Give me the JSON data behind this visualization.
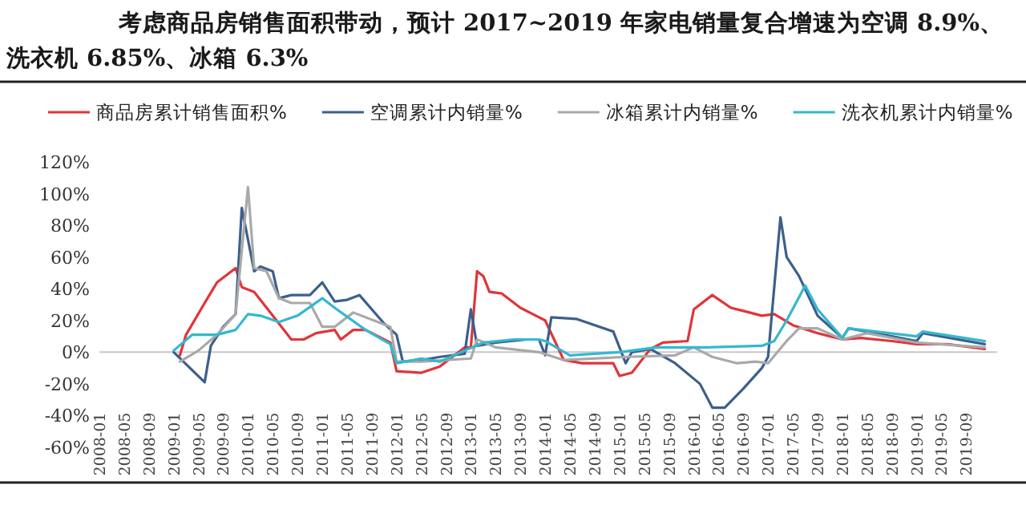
{
  "chart_data": {
    "type": "line",
    "title": "考虑商品房销售面积带动，预计 2017~2019 年家电销量复合增速为空调 8.9%、洗衣机 6.85%、冰箱 6.3%",
    "legend": "top",
    "marker": "none",
    "line_style": "solid",
    "xlim": [
      "2008-01",
      "2020-02"
    ],
    "ylim": [
      -60,
      120
    ],
    "xticks": [
      "2008-01",
      "2008-05",
      "2008-09",
      "2009-01",
      "2009-05",
      "2009-09",
      "2010-01",
      "2010-05",
      "2010-09",
      "2011-01",
      "2011-05",
      "2011-09",
      "2012-01",
      "2012-05",
      "2012-09",
      "2013-01",
      "2013-05",
      "2013-09",
      "2014-01",
      "2014-05",
      "2014-09",
      "2015-01",
      "2015-05",
      "2015-09",
      "2016-01",
      "2016-05",
      "2016-09",
      "2017-01",
      "2017-05",
      "2017-09",
      "2018-01",
      "2018-05",
      "2018-09",
      "2019-01",
      "2019-05",
      "2019-09"
    ],
    "yticks": [
      {
        "value": -60,
        "label": "-60%"
      },
      {
        "value": -40,
        "label": "-40%"
      },
      {
        "value": -20,
        "label": "-20%"
      },
      {
        "value": 0,
        "label": "0%"
      },
      {
        "value": 20,
        "label": "20%"
      },
      {
        "value": 40,
        "label": "40%"
      },
      {
        "value": 60,
        "label": "60%"
      },
      {
        "value": 80,
        "label": "80%"
      },
      {
        "value": 100,
        "label": "100%"
      },
      {
        "value": 120,
        "label": "120%"
      }
    ],
    "series": [
      {
        "name": "商品房累计销售面积%",
        "color": "#e0353a",
        "x": [
          "2009-02",
          "2009-03",
          "2009-06",
          "2009-08",
          "2009-11",
          "2009-12",
          "2010-02",
          "2010-05",
          "2010-08",
          "2010-10",
          "2010-12",
          "2011-03",
          "2011-04",
          "2011-06",
          "2011-08",
          "2011-12",
          "2012-01",
          "2012-05",
          "2012-08",
          "2012-12",
          "2013-01",
          "2013-02",
          "2013-03",
          "2013-04",
          "2013-06",
          "2013-09",
          "2013-11",
          "2014-01",
          "2014-04",
          "2014-07",
          "2014-12",
          "2015-01",
          "2015-03",
          "2015-06",
          "2015-08",
          "2015-12",
          "2016-01",
          "2016-04",
          "2016-07",
          "2016-09",
          "2016-12",
          "2017-02",
          "2017-05",
          "2017-09",
          "2018-01",
          "2018-04",
          "2018-09",
          "2019-01",
          "2019-06",
          "2019-12"
        ],
        "values": [
          -2,
          11,
          31,
          44,
          53,
          41,
          38,
          23,
          8,
          8,
          12,
          14,
          8,
          14,
          14,
          6,
          -12,
          -13,
          -9,
          3,
          3,
          51,
          48,
          38,
          37,
          28,
          24,
          20,
          -5,
          -7,
          -7,
          -15,
          -13,
          2,
          6,
          7,
          27,
          36,
          28,
          26,
          23,
          24,
          17,
          12,
          8,
          9,
          7,
          5,
          5,
          2
        ]
      },
      {
        "name": "空调累计内销量%",
        "color": "#3d5f8c",
        "x": [
          "2009-01",
          "2009-06",
          "2009-07",
          "2009-09",
          "2009-11",
          "2009-12",
          "2010-02",
          "2010-03",
          "2010-05",
          "2010-06",
          "2010-08",
          "2010-11",
          "2011-01",
          "2011-03",
          "2011-05",
          "2011-07",
          "2011-11",
          "2012-01",
          "2012-02",
          "2012-05",
          "2012-08",
          "2012-12",
          "2013-01",
          "2013-02",
          "2013-05",
          "2013-10",
          "2013-12",
          "2014-01",
          "2014-02",
          "2014-06",
          "2014-12",
          "2015-02",
          "2015-03",
          "2015-06",
          "2015-10",
          "2016-02",
          "2016-04",
          "2016-06",
          "2016-09",
          "2016-12",
          "2017-01",
          "2017-03",
          "2017-04",
          "2017-06",
          "2017-09",
          "2018-01",
          "2018-02",
          "2018-05",
          "2019-01",
          "2019-02",
          "2019-12"
        ],
        "values": [
          0,
          -19,
          4,
          16,
          24,
          91,
          51,
          54,
          51,
          34,
          36,
          36,
          44,
          32,
          33,
          36,
          18,
          11,
          -6,
          -5,
          -3,
          -1,
          27,
          4,
          6,
          8,
          8,
          -2,
          22,
          21,
          13,
          -7,
          0,
          2,
          -7,
          -20,
          -35,
          -35,
          -23,
          -10,
          -3,
          85,
          60,
          48,
          23,
          9,
          15,
          13,
          7,
          12,
          5
        ]
      },
      {
        "name": "冰箱累计内销量%",
        "color": "#a9a9a9",
        "x": [
          "2009-02",
          "2009-05",
          "2009-08",
          "2009-11",
          "2010-01",
          "2010-02",
          "2010-04",
          "2010-06",
          "2010-08",
          "2010-11",
          "2011-01",
          "2011-03",
          "2011-06",
          "2011-12",
          "2012-01",
          "2012-05",
          "2013-01",
          "2013-02",
          "2013-05",
          "2013-12",
          "2014-04",
          "2015-02",
          "2015-10",
          "2016-01",
          "2016-04",
          "2016-08",
          "2016-11",
          "2017-01",
          "2017-04",
          "2017-06",
          "2017-09",
          "2018-01",
          "2018-05",
          "2019-01",
          "2019-12"
        ],
        "values": [
          -6,
          1,
          11,
          24,
          104,
          53,
          51,
          34,
          31,
          31,
          16,
          16,
          25,
          16,
          -6,
          -6,
          -4,
          8,
          3,
          0,
          -5,
          -3,
          -2,
          3,
          -3,
          -7,
          -6,
          -7,
          7,
          15,
          15,
          8,
          12,
          6,
          3
        ]
      },
      {
        "name": "洗衣机累计内销量%",
        "color": "#33b8cf",
        "x": [
          "2009-01",
          "2009-04",
          "2009-08",
          "2009-11",
          "2010-01",
          "2010-03",
          "2010-06",
          "2010-09",
          "2011-01",
          "2011-03",
          "2011-08",
          "2011-12",
          "2012-01",
          "2012-05",
          "2012-08",
          "2012-12",
          "2013-03",
          "2013-08",
          "2013-12",
          "2014-01",
          "2014-05",
          "2015-01",
          "2015-07",
          "2016-03",
          "2016-12",
          "2017-02",
          "2017-04",
          "2017-07",
          "2017-09",
          "2018-01",
          "2018-02",
          "2019-01",
          "2019-02",
          "2019-12"
        ],
        "values": [
          1,
          11,
          11,
          14,
          24,
          23,
          19,
          23,
          34,
          28,
          14,
          5,
          -7,
          -4,
          -6,
          1,
          6,
          8,
          8,
          7,
          -2,
          0,
          3,
          3,
          4,
          7,
          20,
          42,
          27,
          9,
          15,
          10,
          13,
          7
        ]
      }
    ]
  }
}
